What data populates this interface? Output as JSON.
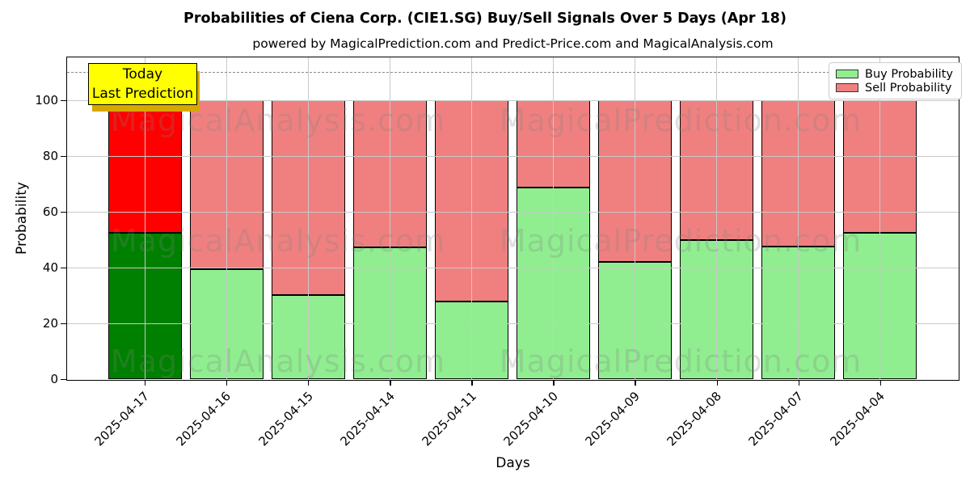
{
  "chart_data": {
    "type": "bar",
    "stacked": true,
    "title": "Probabilities of Ciena Corp. (CIE1.SG) Buy/Sell Signals Over 5 Days (Apr 18)",
    "subtitle": "powered by MagicalPrediction.com and Predict-Price.com and MagicalAnalysis.com",
    "xlabel": "Days",
    "ylabel": "Probability",
    "categories": [
      "2025-04-17",
      "2025-04-16",
      "2025-04-15",
      "2025-04-14",
      "2025-04-11",
      "2025-04-10",
      "2025-04-09",
      "2025-04-08",
      "2025-04-07",
      "2025-04-04"
    ],
    "series": [
      {
        "name": "Buy Probability",
        "values": [
          52.5,
          39.4,
          30.0,
          47.3,
          27.7,
          68.7,
          42.0,
          49.7,
          47.5,
          52.5
        ],
        "color": "#90ee90",
        "today_color": "#008000"
      },
      {
        "name": "Sell Probability",
        "values": [
          47.5,
          60.6,
          70.0,
          52.7,
          72.3,
          31.3,
          58.0,
          50.3,
          52.5,
          47.5
        ],
        "color": "#f08080",
        "today_color": "#ff0000"
      }
    ],
    "ylim": [
      0,
      115.3
    ],
    "yticks": [
      0,
      20,
      40,
      60,
      80,
      100
    ],
    "grid": true,
    "dashed_line_y": 110,
    "legend_position": "upper right",
    "annotation": {
      "line1": "Today",
      "line2": "Last Prediction",
      "bg": "#ffff00",
      "shadow_color": "#d9a800"
    },
    "watermarks": {
      "left": "MagicalAnalysis.com",
      "right": "MagicalPrediction.com",
      "color": "#808080"
    }
  }
}
